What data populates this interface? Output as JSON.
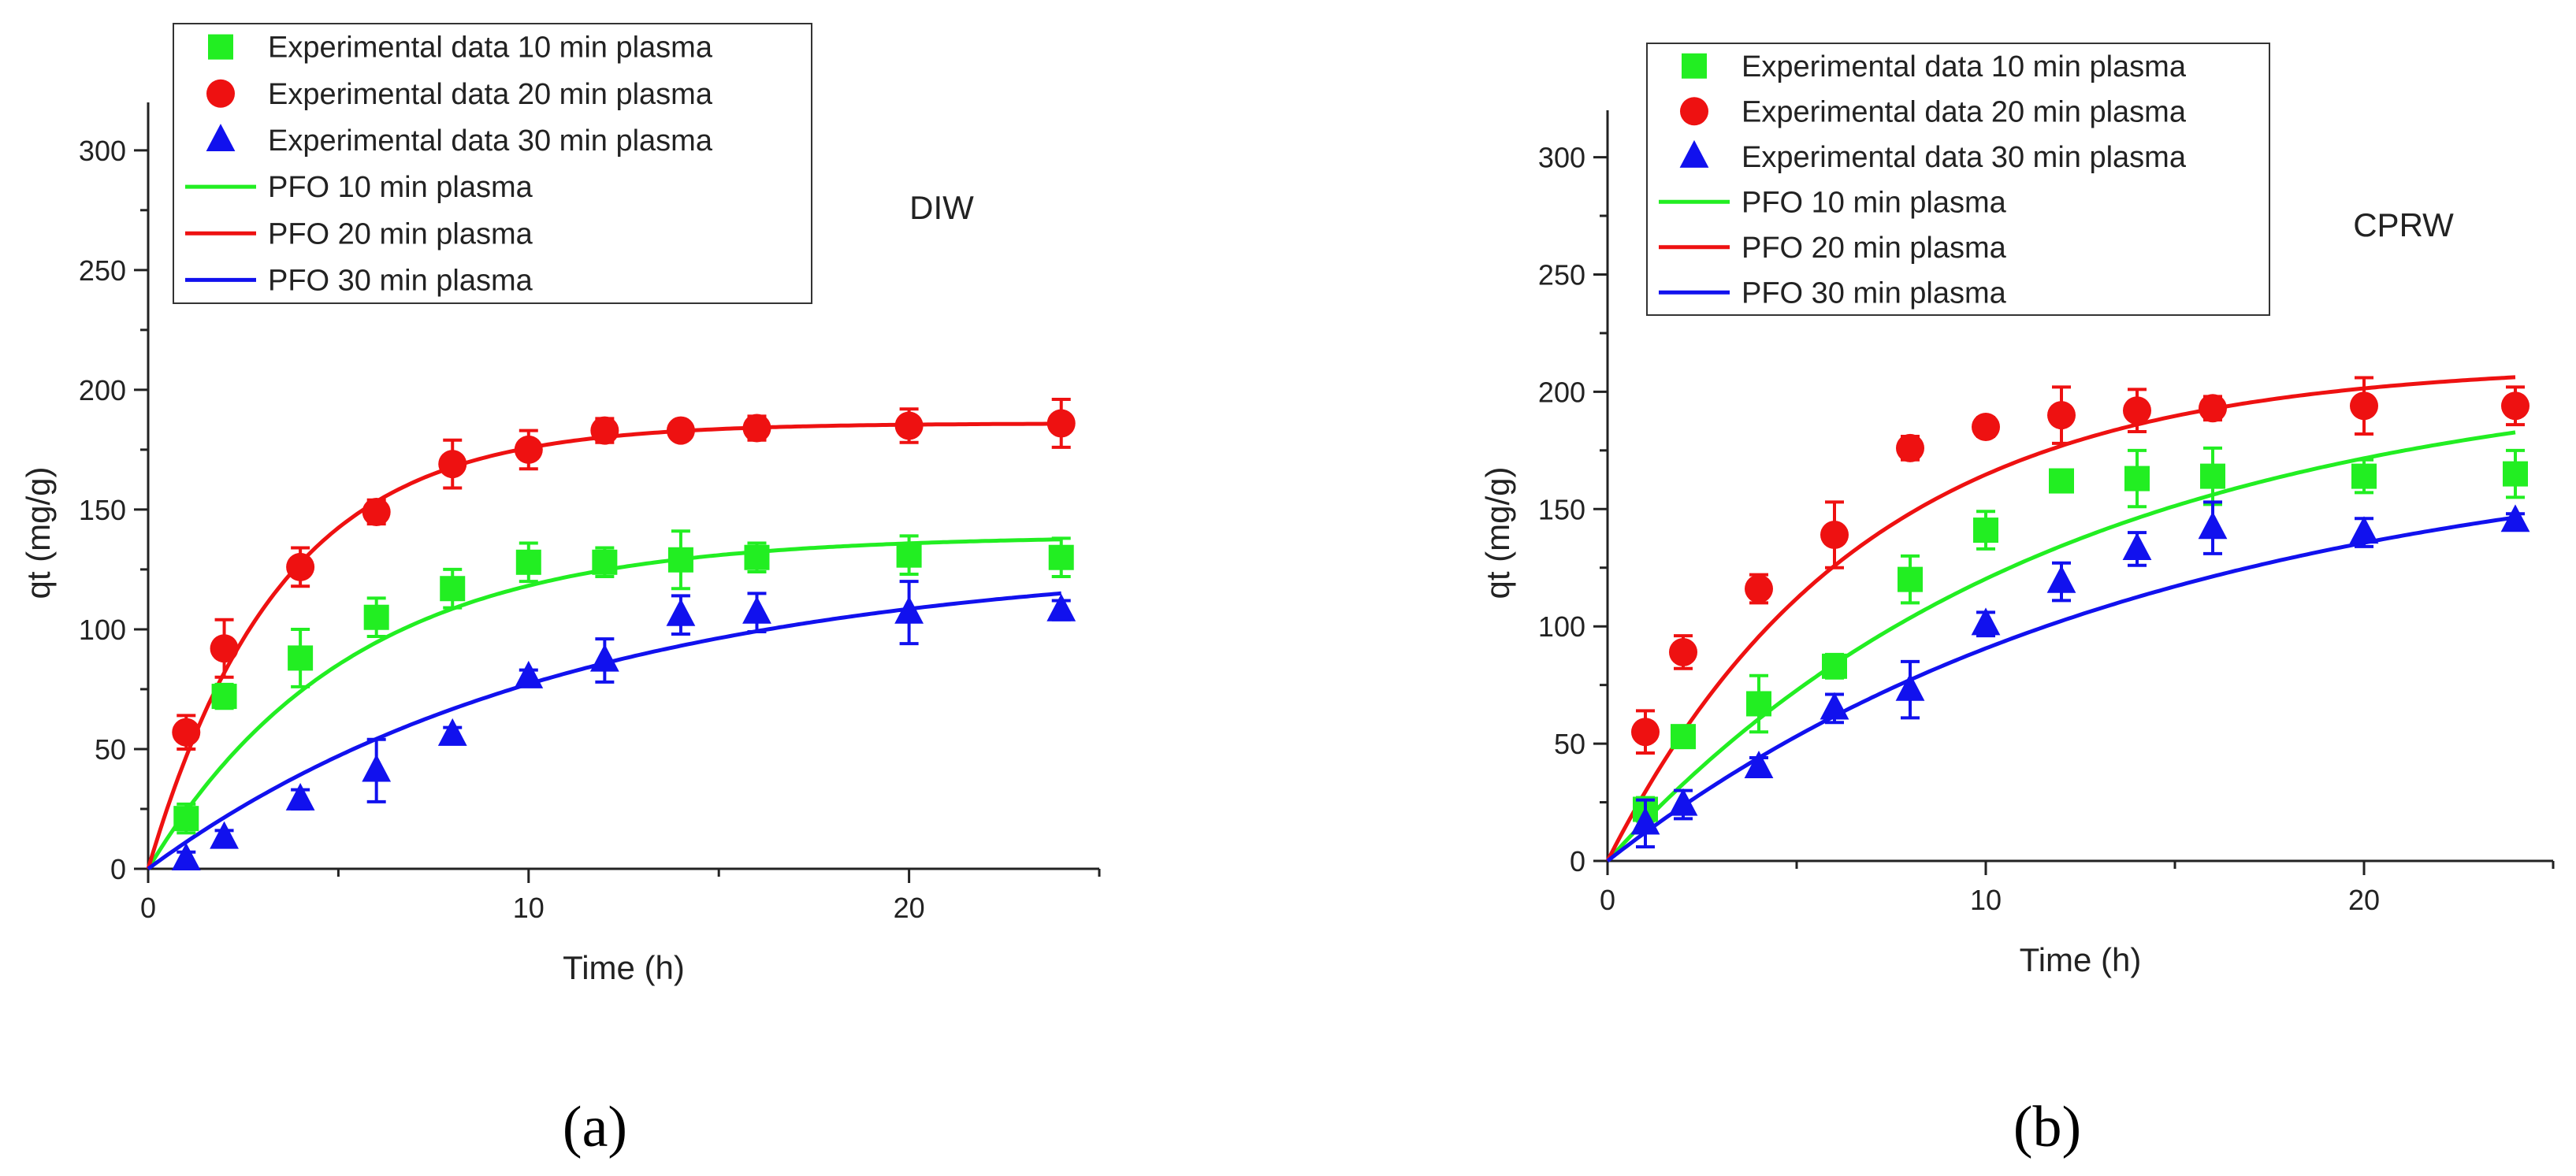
{
  "chart_data": [
    {
      "type": "scatter",
      "panel_label": "(a)",
      "annotation": "DIW",
      "xlabel": "Time (h)",
      "ylabel": "qt (mg/g)",
      "xlim": [
        0,
        25
      ],
      "ylim": [
        0,
        320
      ],
      "xticks": [
        0,
        10,
        20
      ],
      "yticks": [
        0,
        50,
        100,
        150,
        200,
        250,
        300
      ],
      "legend_position": "top-left",
      "series": [
        {
          "name": "Experimental data 10 min plasma",
          "kind": "points",
          "marker": "square",
          "color": "#22ee22",
          "x": [
            1,
            2,
            4,
            6,
            8,
            10,
            12,
            14,
            16,
            20,
            24
          ],
          "y": [
            21,
            72,
            88,
            105,
            117,
            128,
            128,
            129,
            130,
            131,
            130
          ],
          "err": [
            6,
            5,
            12,
            8,
            8,
            8,
            6,
            12,
            6,
            8,
            8
          ]
        },
        {
          "name": "Experimental data 20 min plasma",
          "kind": "points",
          "marker": "circle",
          "color": "#ee1111",
          "x": [
            1,
            2,
            4,
            6,
            8,
            10,
            12,
            14,
            16,
            20,
            24
          ],
          "y": [
            57,
            92,
            126,
            149,
            169,
            175,
            183,
            183,
            184,
            185,
            186
          ],
          "err": [
            7,
            12,
            8,
            5,
            10,
            8,
            5,
            3,
            5,
            7,
            10
          ]
        },
        {
          "name": "Experimental data 30 min plasma",
          "kind": "points",
          "marker": "triangle",
          "color": "#1111ee",
          "x": [
            1,
            2,
            4,
            6,
            8,
            10,
            12,
            14,
            16,
            20,
            24
          ],
          "y": [
            4,
            13,
            29,
            41,
            56,
            80,
            87,
            106,
            107,
            107,
            108
          ],
          "err": [
            3,
            3,
            4,
            13,
            3,
            3,
            9,
            8,
            8,
            13,
            4
          ]
        },
        {
          "name": "PFO 10 min plasma",
          "kind": "line",
          "color": "#22ee22",
          "qe": 139,
          "k": 0.19
        },
        {
          "name": "PFO 20 min plasma",
          "kind": "line",
          "color": "#ee1111",
          "qe": 186,
          "k": 0.29
        },
        {
          "name": "PFO 30 min plasma",
          "kind": "line",
          "color": "#1111ee",
          "qe": 130,
          "k": 0.09
        }
      ]
    },
    {
      "type": "scatter",
      "panel_label": "(b)",
      "annotation": "CPRW",
      "xlabel": "Time (h)",
      "ylabel": "qt (mg/g)",
      "xlim": [
        0,
        25
      ],
      "ylim": [
        0,
        320
      ],
      "xticks": [
        0,
        10,
        20
      ],
      "yticks": [
        0,
        50,
        100,
        150,
        200,
        250,
        300
      ],
      "legend_position": "top-left",
      "series": [
        {
          "name": "Experimental data 10 min plasma",
          "kind": "points",
          "marker": "square",
          "color": "#22ee22",
          "x": [
            1,
            2,
            4,
            6,
            8,
            10,
            12,
            14,
            16,
            20,
            24
          ],
          "y": [
            22,
            53,
            67,
            83,
            120,
            141,
            162,
            163,
            164,
            164,
            165
          ],
          "err": [
            5,
            4,
            12,
            5,
            10,
            8,
            3,
            12,
            12,
            7,
            10
          ]
        },
        {
          "name": "Experimental data 20 min plasma",
          "kind": "points",
          "marker": "circle",
          "color": "#ee1111",
          "x": [
            1,
            2,
            4,
            6,
            8,
            10,
            12,
            14,
            16,
            20,
            24
          ],
          "y": [
            55,
            89,
            116,
            139,
            176,
            185,
            190,
            192,
            193,
            194,
            194
          ],
          "err": [
            9,
            7,
            6,
            14,
            5,
            4,
            12,
            9,
            5,
            12,
            8
          ]
        },
        {
          "name": "Experimental data 30 min plasma",
          "kind": "points",
          "marker": "triangle",
          "color": "#1111ee",
          "x": [
            1,
            2,
            4,
            6,
            8,
            10,
            12,
            14,
            16,
            20,
            24
          ],
          "y": [
            16,
            24,
            40,
            65,
            73,
            101,
            119,
            133,
            142,
            140,
            145
          ],
          "err": [
            10,
            6,
            4,
            6,
            12,
            5,
            8,
            7,
            11,
            6,
            3
          ]
        },
        {
          "name": "PFO 10 min plasma",
          "kind": "line",
          "color": "#22ee22",
          "qe": 210,
          "k": 0.085
        },
        {
          "name": "PFO 20 min plasma",
          "kind": "line",
          "color": "#ee1111",
          "qe": 212,
          "k": 0.15
        },
        {
          "name": "PFO 30 min plasma",
          "kind": "line",
          "color": "#1111ee",
          "qe": 180,
          "k": 0.07
        }
      ]
    }
  ]
}
